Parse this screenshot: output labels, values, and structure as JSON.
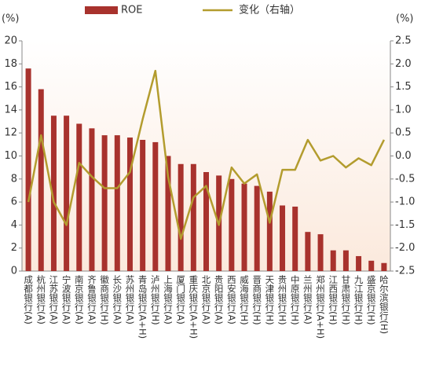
{
  "chart_data": {
    "type": "bar",
    "y_label": "(%)",
    "y2_label": "(%)",
    "categories": [
      "成都银行(A)",
      "杭州银行(A)",
      "江苏银行(A)",
      "宁波银行(A)",
      "南京银行(A)",
      "齐鲁银行(A)",
      "徽商银行(H)",
      "长沙银行(A)",
      "苏州银行(A)",
      "青岛银行(A+H)",
      "泸州银行(H)",
      "上海银行(A)",
      "厦门银行(A)",
      "重庆银行(A+H)",
      "北京银行(A)",
      "贵阳银行(A)",
      "西安银行(A)",
      "威海银行(H)",
      "晋商银行(H)",
      "天津银行(H)",
      "贵州银行(H)",
      "中原银行(H)",
      "兰州银行(A)",
      "郑州银行(A+H)",
      "江西银行(H)",
      "甘肃银行(H)",
      "九江银行(H)",
      "盛京银行(H)",
      "哈尔滨银行(H)"
    ],
    "series": [
      {
        "name": "ROE",
        "color": "#a8322d",
        "type": "bar",
        "values": [
          17.6,
          15.8,
          13.5,
          13.5,
          12.8,
          12.4,
          11.8,
          11.8,
          11.6,
          11.4,
          11.2,
          10.0,
          9.3,
          9.3,
          8.6,
          8.3,
          8.0,
          7.6,
          7.4,
          6.9,
          5.7,
          5.6,
          3.4,
          3.2,
          1.8,
          1.8,
          1.3,
          0.9,
          0.7
        ]
      },
      {
        "name": "变化（右轴）",
        "color": "#b39c2e",
        "type": "line",
        "axis": "y2",
        "values": [
          -1.0,
          0.45,
          -1.0,
          -1.5,
          -0.15,
          -0.45,
          -0.7,
          -0.7,
          -0.35,
          0.8,
          1.85,
          -0.45,
          -1.8,
          -0.9,
          -0.65,
          -1.5,
          -0.25,
          -0.6,
          -0.4,
          -1.45,
          -0.3,
          -0.3,
          0.35,
          -0.1,
          0.0,
          -0.25,
          -0.05,
          -0.2,
          0.35
        ]
      }
    ],
    "ylim": [
      0,
      20
    ],
    "yticks": [
      0,
      2,
      4,
      6,
      8,
      10,
      12,
      14,
      16,
      18,
      20
    ],
    "y2lim": [
      -2.5,
      2.5
    ],
    "y2ticks": [
      {
        "value": -2.5,
        "label": "-2.5"
      },
      {
        "value": -2,
        "label": "-2.0"
      },
      {
        "value": -1.5,
        "label": "-1.5"
      },
      {
        "value": -1,
        "label": "-1.0"
      },
      {
        "value": -0.5,
        "label": "-0.5"
      },
      {
        "value": 0,
        "label": "0.0"
      },
      0.5,
      {
        "value": 1,
        "label": "1.0"
      },
      1.5,
      {
        "value": 2,
        "label": "2.0"
      },
      2.5
    ],
    "grid": false
  }
}
